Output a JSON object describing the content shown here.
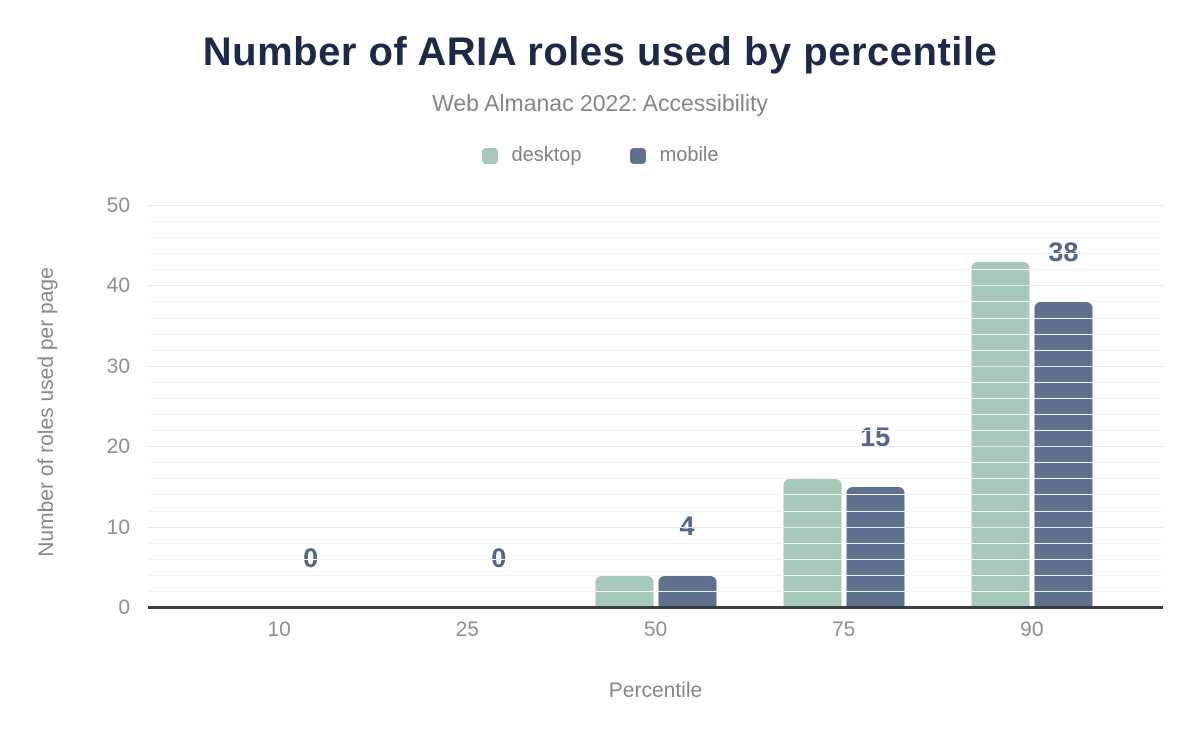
{
  "chart_data": {
    "type": "bar",
    "title": "Number of ARIA roles used by percentile",
    "subtitle": "Web Almanac 2022: Accessibility",
    "categories": [
      "10",
      "25",
      "50",
      "75",
      "90"
    ],
    "series": [
      {
        "name": "desktop",
        "color": "#a6c9b8",
        "values": [
          0,
          0,
          4,
          16,
          43
        ]
      },
      {
        "name": "mobile",
        "color": "#5f718c",
        "values": [
          0,
          0,
          4,
          15,
          38
        ]
      }
    ],
    "annotations": {
      "series": "mobile",
      "values": [
        0,
        0,
        4,
        15,
        38
      ],
      "color": "#53658a"
    },
    "xlabel": "Percentile",
    "ylabel": "Number of roles used per page",
    "ylim": [
      0,
      50
    ],
    "yticks": [
      0,
      10,
      20,
      30,
      40,
      50
    ],
    "grid": {
      "major_step": 10,
      "minor_step": 2,
      "show": true
    },
    "legend_position": "top"
  },
  "colors": {
    "title": "#1c2a47",
    "subtitle": "#82868e",
    "axis_text": "#8b8f98",
    "baseline": "#393d44",
    "major_grid": "#e7e8e9",
    "minor_grid": "#f4f4f5"
  }
}
